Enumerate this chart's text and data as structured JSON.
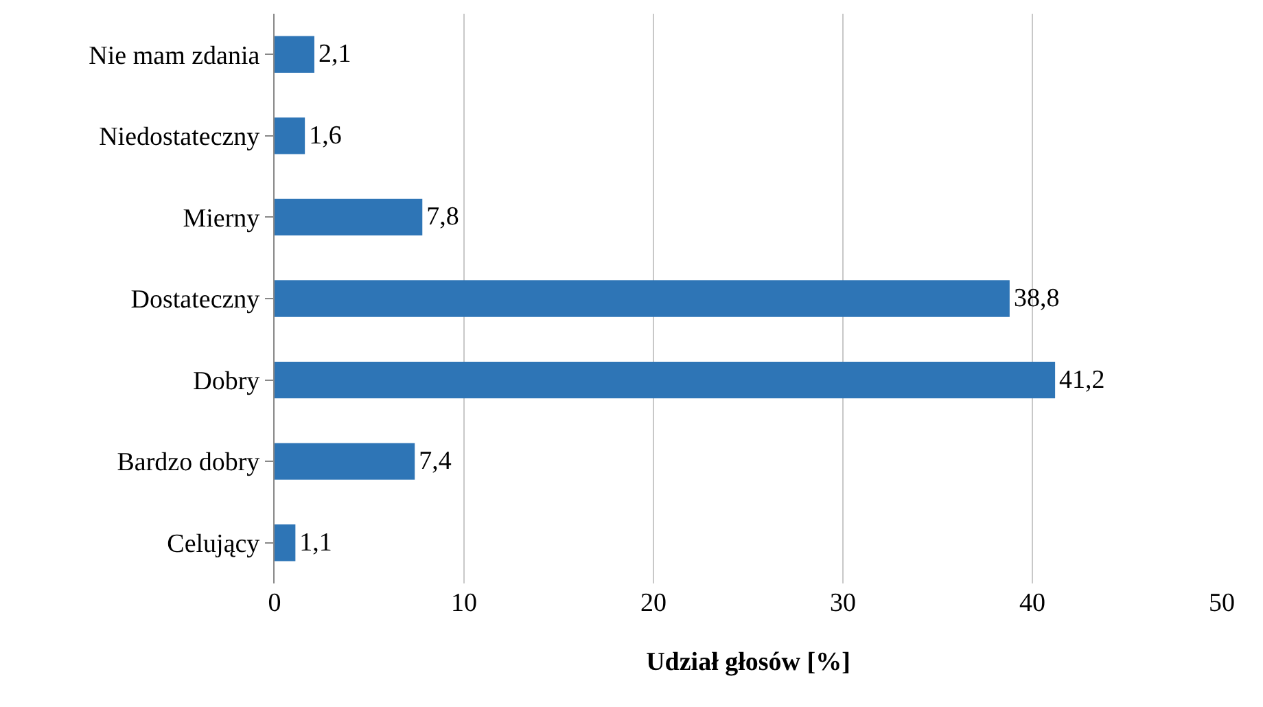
{
  "chart_data": {
    "type": "bar",
    "orientation": "horizontal",
    "xlabel": "Udział głosów [%]",
    "categories": [
      "Nie mam zdania",
      "Niedostateczny",
      "Mierny",
      "Dostateczny",
      "Dobry",
      "Bardzo dobry",
      "Celujący"
    ],
    "values": [
      2.1,
      1.6,
      7.8,
      38.8,
      41.2,
      7.4,
      1.1
    ],
    "value_labels": [
      "2,1",
      "1,6",
      "7,8",
      "38,8",
      "41,2",
      "7,4",
      "1,1"
    ],
    "color": "#2e75b6",
    "xlim": [
      0,
      50
    ],
    "xticks": [
      0,
      10,
      20,
      30,
      40,
      50
    ],
    "grid": "x",
    "legend": false
  }
}
